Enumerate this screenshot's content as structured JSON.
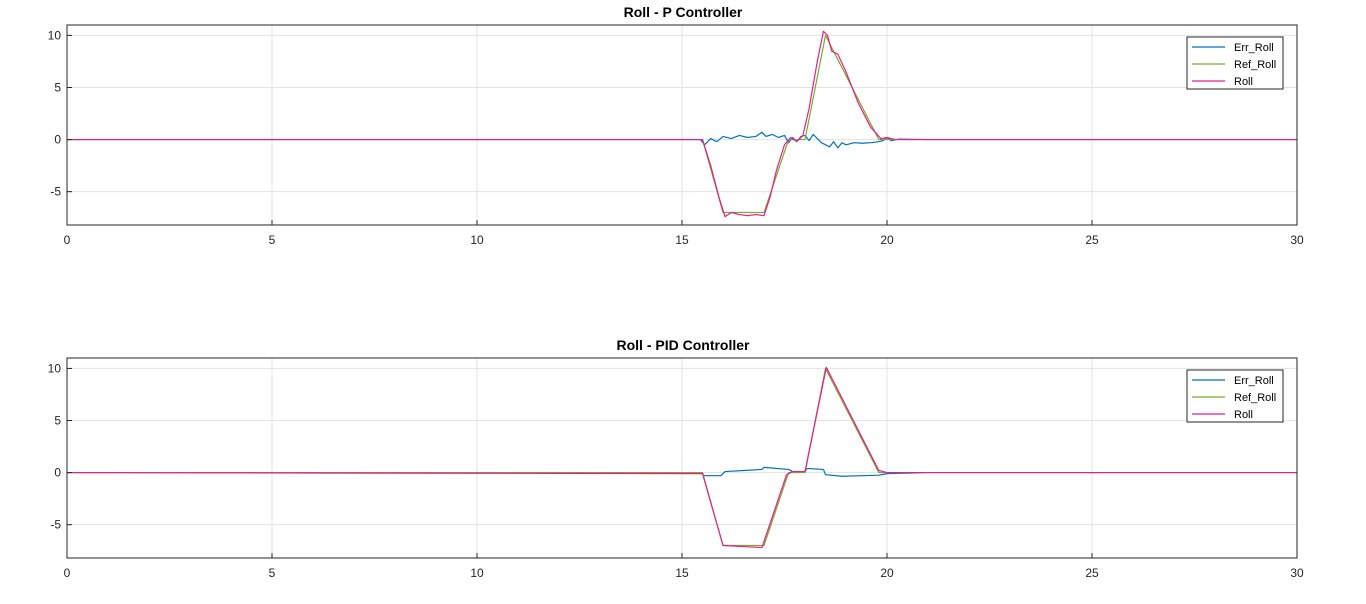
{
  "chart_data": [
    {
      "type": "line",
      "title": "Roll - P Controller",
      "xlabel": "",
      "ylabel": "",
      "xlim": [
        0,
        30
      ],
      "ylim": [
        -8.2,
        11
      ],
      "xticks": [
        "0",
        "5",
        "10",
        "15",
        "20",
        "25",
        "30"
      ],
      "yticks": [
        "-5",
        "0",
        "5",
        "10"
      ],
      "grid": true,
      "legend_position": "top-right",
      "series": [
        {
          "name": "Err_Roll",
          "color": "#0072BD",
          "x": [
            0,
            15.45,
            15.55,
            15.7,
            15.85,
            16.0,
            16.2,
            16.4,
            16.6,
            16.8,
            16.95,
            17.05,
            17.2,
            17.35,
            17.5,
            17.6,
            17.7,
            17.8,
            17.9,
            18.0,
            18.1,
            18.2,
            18.3,
            18.4,
            18.5,
            18.6,
            18.7,
            18.8,
            18.9,
            19.0,
            19.2,
            19.4,
            19.6,
            19.8,
            19.9,
            20.0,
            20.1,
            20.3,
            21.0,
            30
          ],
          "y": [
            0,
            0,
            -0.5,
            0.1,
            -0.2,
            0.3,
            0.1,
            0.4,
            0.2,
            0.3,
            0.7,
            0.3,
            0.5,
            0.2,
            0.4,
            -0.3,
            0.2,
            -0.2,
            0.3,
            0.4,
            -0.1,
            0.5,
            0.1,
            -0.3,
            -0.5,
            -0.7,
            -0.2,
            -0.8,
            -0.3,
            -0.5,
            -0.3,
            -0.35,
            -0.3,
            -0.2,
            -0.1,
            0.2,
            -0.1,
            0.05,
            0,
            0
          ]
        },
        {
          "name": "Ref_Roll",
          "color": "#77AC30",
          "x": [
            0,
            15.5,
            16.0,
            17.0,
            17.6,
            18.0,
            18.5,
            19.8,
            20.0,
            30
          ],
          "y": [
            0,
            0,
            -7,
            -7,
            0,
            0,
            10,
            0,
            0,
            0
          ]
        },
        {
          "name": "Roll",
          "color": "#E81E8C",
          "x": [
            0,
            15.5,
            15.7,
            15.9,
            16.05,
            16.2,
            16.4,
            16.6,
            16.8,
            17.0,
            17.15,
            17.3,
            17.5,
            17.65,
            17.8,
            17.95,
            18.1,
            18.3,
            18.45,
            18.55,
            18.65,
            18.8,
            19.0,
            19.3,
            19.6,
            19.85,
            20.0,
            20.2,
            30
          ],
          "y": [
            0,
            0,
            -2.5,
            -5.5,
            -7.4,
            -7.0,
            -7.2,
            -7.3,
            -7.2,
            -7.3,
            -5.5,
            -3.0,
            -0.5,
            0.2,
            -0.2,
            0.4,
            3.0,
            7.5,
            10.4,
            10.0,
            8.5,
            8.2,
            6.5,
            3.5,
            1.2,
            0.1,
            0.2,
            0,
            0
          ]
        }
      ]
    },
    {
      "type": "line",
      "title": "Roll - PID Controller",
      "xlabel": "",
      "ylabel": "",
      "xlim": [
        0,
        30
      ],
      "ylim": [
        -8.2,
        11
      ],
      "xticks": [
        "0",
        "5",
        "10",
        "15",
        "20",
        "25",
        "30"
      ],
      "yticks": [
        "-5",
        "0",
        "5",
        "10"
      ],
      "grid": true,
      "legend_position": "top-right",
      "series": [
        {
          "name": "Err_Roll",
          "color": "#0072BD",
          "x": [
            0,
            15.45,
            15.55,
            15.95,
            16.05,
            16.5,
            16.95,
            17.0,
            17.6,
            17.7,
            18.0,
            18.05,
            18.45,
            18.5,
            18.9,
            19.4,
            19.8,
            20.0,
            20.5,
            21.0,
            30
          ],
          "y": [
            0,
            0,
            -0.3,
            -0.3,
            0.1,
            0.2,
            0.3,
            0.5,
            0.3,
            0.1,
            0.1,
            0.4,
            0.3,
            -0.2,
            -0.35,
            -0.3,
            -0.25,
            -0.1,
            -0.05,
            0,
            0
          ]
        },
        {
          "name": "Ref_Roll",
          "color": "#77AC30",
          "x": [
            0,
            15.5,
            16.0,
            17.0,
            17.6,
            18.0,
            18.5,
            19.8,
            20.0,
            30
          ],
          "y": [
            0,
            0,
            -7,
            -7,
            0,
            0,
            10,
            0,
            0,
            0
          ]
        },
        {
          "name": "Roll",
          "color": "#E81E8C",
          "x": [
            0,
            15.5,
            16.0,
            16.5,
            16.95,
            17.55,
            17.7,
            18.0,
            18.52,
            19.8,
            20.0,
            30
          ],
          "y": [
            0,
            -0.1,
            -7.0,
            -7.1,
            -7.2,
            -0.2,
            0.1,
            0.1,
            10.1,
            0.2,
            0,
            0
          ]
        }
      ]
    }
  ]
}
